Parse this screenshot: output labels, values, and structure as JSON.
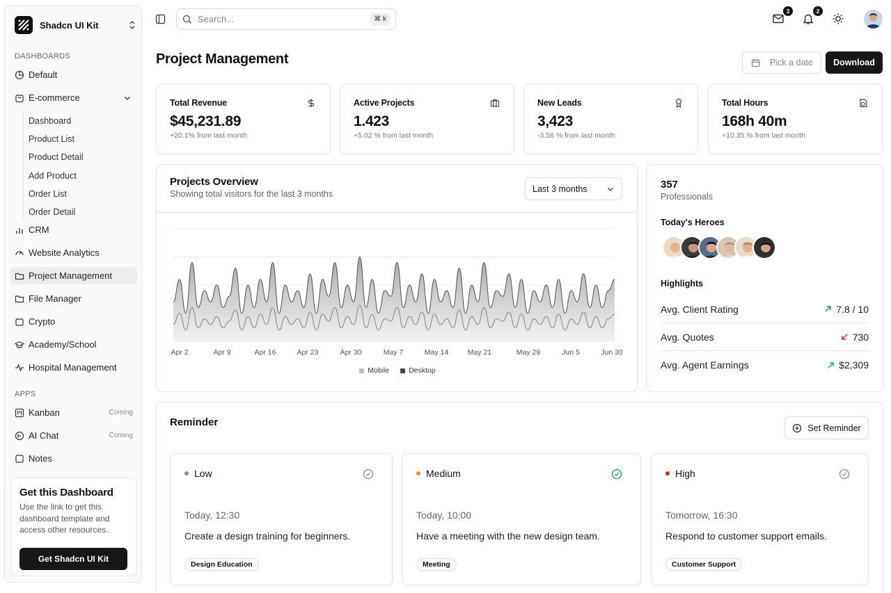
{
  "sidebar": {
    "brand": "Shadcn UI Kit",
    "dashboards_label": "DASHBOARDS",
    "apps_label": "APPS",
    "items": [
      {
        "label": "Default"
      },
      {
        "label": "E-commerce"
      },
      {
        "label": "CRM"
      },
      {
        "label": "Website Analytics"
      },
      {
        "label": "Project Management"
      },
      {
        "label": "File Manager"
      },
      {
        "label": "Crypto"
      },
      {
        "label": "Academy/School"
      },
      {
        "label": "Hospital Management"
      }
    ],
    "ecommerce_sub": [
      "Dashboard",
      "Product List",
      "Product Detail",
      "Add Product",
      "Order List",
      "Order Detail"
    ],
    "apps": [
      {
        "label": "Kanban",
        "badge": "Coming"
      },
      {
        "label": "AI Chat",
        "badge": "Coming"
      },
      {
        "label": "Notes",
        "badge": ""
      }
    ],
    "promo": {
      "title": "Get this Dashboard",
      "text": "Use the link to get this dashboard template and access other resources.",
      "button": "Get Shadcn UI Kit"
    }
  },
  "topbar": {
    "search_placeholder": "Search...",
    "search_shortcut": "⌘ k",
    "mail_count": "3",
    "notif_count": "2"
  },
  "header": {
    "title": "Project Management",
    "date_placeholder": "Pick a date",
    "download": "Download"
  },
  "stats": [
    {
      "title": "Total Revenue",
      "value": "$45,231.89",
      "sub": "+20.1% from last month",
      "icon": "dollar-icon"
    },
    {
      "title": "Active Projects",
      "value": "1.423",
      "sub": "+5.02 % from last month",
      "icon": "briefcase-icon"
    },
    {
      "title": "New Leads",
      "value": "3,423",
      "sub": "-3.58 % from last month",
      "icon": "award-icon"
    },
    {
      "title": "Total Hours",
      "value": "168h 40m",
      "sub": "+10.35 % from last month",
      "icon": "clock-icon"
    }
  ],
  "overview": {
    "title": "Projects Overview",
    "subtitle": "Showing total visitors for the last 3 months",
    "range": "Last 3 months"
  },
  "chart_data": {
    "type": "area",
    "x_ticks": [
      "Apr 2",
      "Apr 9",
      "Apr 16",
      "Apr 23",
      "Apr 30",
      "May 7",
      "May 14",
      "May 21",
      "May 29",
      "Jun 5",
      "Jun 30"
    ],
    "series": [
      {
        "name": "Mobile",
        "color": "#bdbdbd",
        "values": [
          0.35,
          0.55,
          0.25,
          0.7,
          0.3,
          0.45,
          0.35,
          0.5,
          0.3,
          0.4,
          0.65,
          0.25,
          0.5,
          0.3,
          0.55,
          0.35,
          0.7,
          0.25,
          0.5,
          0.35,
          0.45,
          0.3,
          0.6,
          0.25,
          0.55,
          0.4,
          0.7,
          0.3,
          0.5,
          0.35,
          0.75,
          0.3,
          0.55,
          0.25,
          0.45,
          0.4,
          0.7,
          0.3,
          0.5,
          0.35,
          0.6,
          0.25,
          0.55,
          0.35,
          0.45,
          0.3,
          0.65,
          0.25,
          0.5,
          0.35,
          0.7,
          0.3,
          0.45,
          0.4,
          0.6,
          0.3,
          0.55,
          0.25,
          0.45,
          0.35,
          0.5,
          0.3,
          0.55,
          0.25,
          0.45,
          0.35,
          0.6,
          0.3,
          0.5,
          0.3,
          0.45,
          0.55
        ]
      },
      {
        "name": "Desktop",
        "color": "#444444",
        "values": [
          0.15,
          0.25,
          0.1,
          0.3,
          0.12,
          0.2,
          0.15,
          0.22,
          0.12,
          0.18,
          0.28,
          0.1,
          0.22,
          0.12,
          0.24,
          0.15,
          0.3,
          0.1,
          0.22,
          0.15,
          0.2,
          0.12,
          0.26,
          0.1,
          0.24,
          0.18,
          0.3,
          0.12,
          0.22,
          0.15,
          0.32,
          0.12,
          0.24,
          0.1,
          0.2,
          0.18,
          0.3,
          0.12,
          0.22,
          0.15,
          0.26,
          0.1,
          0.24,
          0.15,
          0.2,
          0.12,
          0.28,
          0.1,
          0.22,
          0.15,
          0.3,
          0.12,
          0.2,
          0.18,
          0.26,
          0.12,
          0.24,
          0.1,
          0.2,
          0.15,
          0.22,
          0.12,
          0.24,
          0.1,
          0.2,
          0.15,
          0.26,
          0.12,
          0.22,
          0.12,
          0.2,
          0.24
        ]
      }
    ],
    "legend": [
      "Mobile",
      "Desktop"
    ],
    "grid": true
  },
  "heroes": {
    "count": "357",
    "count_label": "Professionals",
    "heroes_title": "Today's Heroes",
    "highlights_title": "Highlights",
    "highlights": [
      {
        "label": "Avg. Client Rating",
        "value": "7.8 / 10",
        "trend": "up"
      },
      {
        "label": "Avg. Quotes",
        "value": "730",
        "trend": "down"
      },
      {
        "label": "Avg. Agent Earnings",
        "value": "$2,309",
        "trend": "up"
      }
    ]
  },
  "reminder": {
    "title": "Reminder",
    "button": "Set Reminder",
    "cards": [
      {
        "priority": "Low",
        "dot": "#8a8a99",
        "check_color": "#888888",
        "time": "Today, 12:30",
        "text": "Create a design training for beginners.",
        "tag": "Design Education"
      },
      {
        "priority": "Medium",
        "dot": "#f08a24",
        "check_color": "#16a34a",
        "time": "Today, 10:00",
        "text": "Have a meeting with the new design team.",
        "tag": "Meeting"
      },
      {
        "priority": "High",
        "dot": "#dc2626",
        "check_color": "#888888",
        "time": "Tomorrow, 16:30",
        "text": "Respond to customer support emails.",
        "tag": "Customer Support"
      }
    ]
  }
}
